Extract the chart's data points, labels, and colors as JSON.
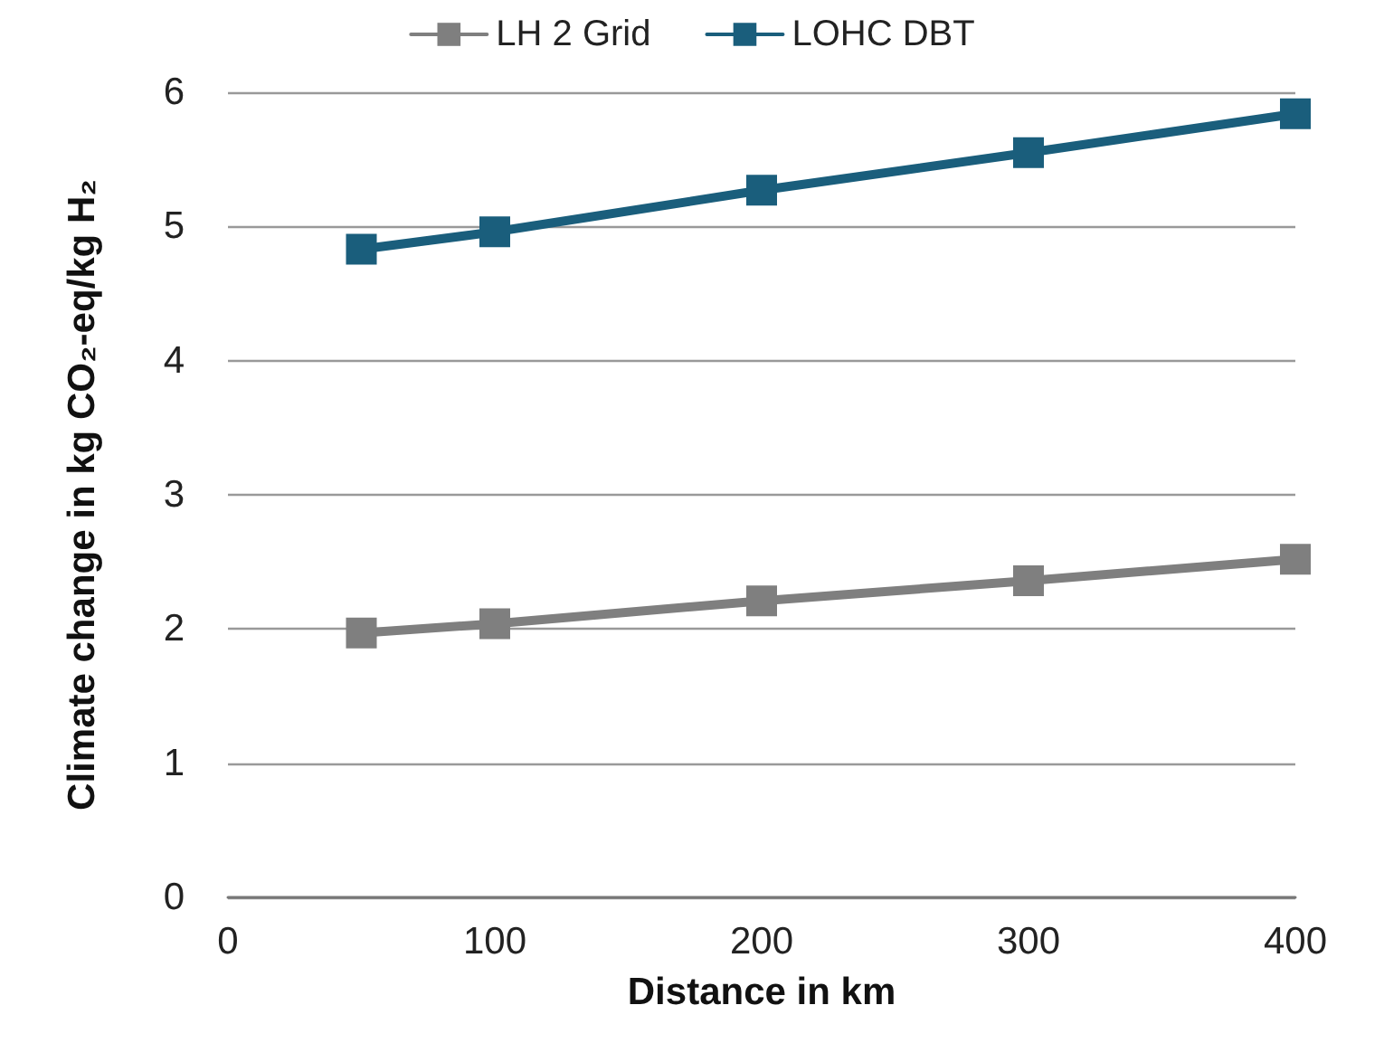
{
  "chart_data": {
    "type": "line",
    "xlabel": "Distance in km",
    "ylabel": "Climate change in kg CO₂-eq/kg H₂",
    "x": [
      50,
      100,
      200,
      300,
      400
    ],
    "series": [
      {
        "name": "LH 2 Grid",
        "color": "#7f7f7f",
        "values": [
          1.97,
          2.04,
          2.21,
          2.36,
          2.52
        ]
      },
      {
        "name": "LOHC DBT",
        "color": "#1a5e7c",
        "values": [
          4.83,
          4.96,
          5.27,
          5.55,
          5.84
        ]
      }
    ],
    "xlim": [
      0,
      400
    ],
    "xticks": [
      0,
      100,
      200,
      300,
      400
    ],
    "ylim": [
      0,
      6
    ],
    "yticks": [
      0,
      1,
      2,
      3,
      4,
      5,
      6
    ],
    "grid": "y",
    "legend": "top",
    "marker": "square",
    "line_style": "solid"
  }
}
